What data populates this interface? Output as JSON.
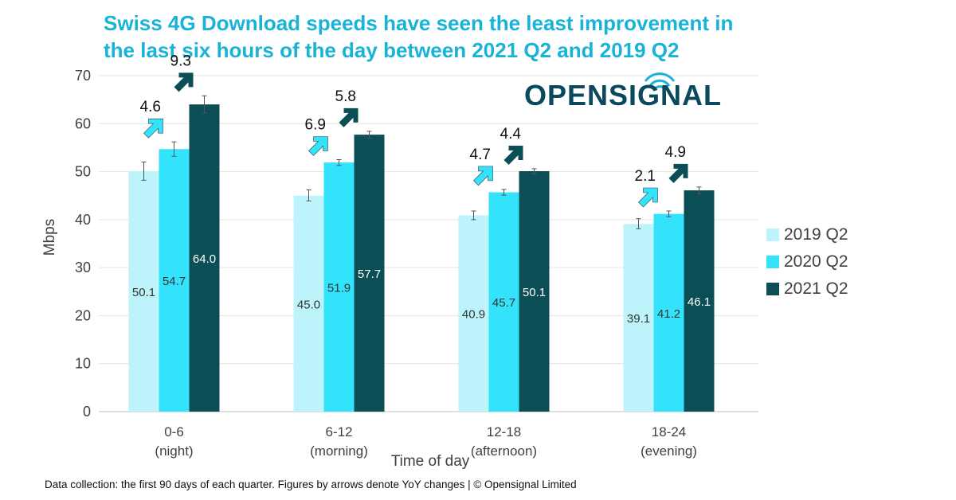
{
  "title": {
    "line1": "Swiss 4G Download speeds have seen the least improvement in",
    "line2": "the last six hours of the day between 2021 Q2 and 2019 Q2"
  },
  "logo": {
    "text": "OPENSIGNAL"
  },
  "footer": "Data collection: the first 90 days of each quarter. Figures by arrows denote YoY changes | © Opensignal Limited",
  "colors": {
    "title": "#1ab3d8",
    "s2019": "#bdf3fb",
    "s2020": "#33e3fb",
    "s2021": "#0b4e55",
    "logo": "#0b4a5e"
  },
  "chart_data": {
    "type": "bar",
    "title": "Swiss 4G Download speeds have seen the least improvement in the last six hours of the day between 2021 Q2 and 2019 Q2",
    "xlabel": "Time of day",
    "ylabel": "Mbps",
    "ylim": [
      0,
      70
    ],
    "yticks": [
      0,
      10,
      20,
      30,
      40,
      50,
      60,
      70
    ],
    "grid": true,
    "legend_position": "right",
    "categories": [
      [
        "0-6",
        "(night)"
      ],
      [
        "6-12",
        "(morning)"
      ],
      [
        "12-18",
        "(afternoon)"
      ],
      [
        "18-24",
        "(evening)"
      ]
    ],
    "series": [
      {
        "name": "2019 Q2",
        "color": "#bdf3fb",
        "values": [
          50.1,
          45.0,
          40.9,
          39.1
        ],
        "error_low": [
          48.2,
          43.9,
          40.0,
          38.1
        ],
        "error_high": [
          52.0,
          46.2,
          41.8,
          40.2
        ]
      },
      {
        "name": "2020 Q2",
        "color": "#33e3fb",
        "values": [
          54.7,
          51.9,
          45.7,
          41.2
        ],
        "error_low": [
          53.2,
          51.3,
          45.1,
          40.6
        ],
        "error_high": [
          56.2,
          52.5,
          46.3,
          41.8
        ]
      },
      {
        "name": "2021 Q2",
        "color": "#0b4e55",
        "values": [
          64.0,
          57.7,
          50.1,
          46.1
        ],
        "error_low": [
          62.2,
          57.0,
          49.6,
          45.4
        ],
        "error_high": [
          65.8,
          58.4,
          50.6,
          46.8
        ]
      }
    ],
    "yoy_changes": [
      {
        "to_series": "2020 Q2",
        "values": [
          "4.6",
          "6.9",
          "4.7",
          "2.1"
        ]
      },
      {
        "to_series": "2021 Q2",
        "values": [
          "9.3",
          "5.8",
          "4.4",
          "4.9"
        ]
      }
    ]
  }
}
